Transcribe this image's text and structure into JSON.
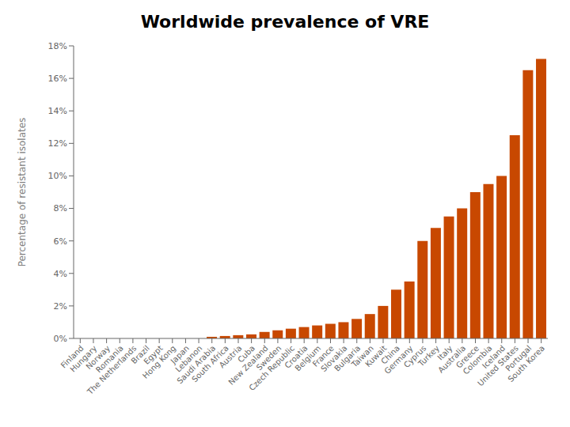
{
  "chart_data": {
    "type": "bar",
    "title": "Worldwide prevalence of VRE",
    "ylabel": "Percentage of resistant isolates",
    "categories": [
      "Finland",
      "Hungary",
      "Norway",
      "Romania",
      "The Netherlands",
      "Brazil",
      "Egypt",
      "Hong Kong",
      "Japan",
      "Lebanon",
      "Saudi Arabia",
      "South Africa",
      "Austria",
      "Cuba",
      "New Zealand",
      "Sweden",
      "Czech Republic",
      "Croatia",
      "Belgium",
      "France",
      "Slovakia",
      "Bulgaria",
      "Taiwan",
      "Kuwait",
      "China",
      "Germany",
      "Cyprus",
      "Turkey",
      "Italy",
      "Australia",
      "Greece",
      "Colombia",
      "Iceland",
      "United States",
      "Portugal",
      "South Korea"
    ],
    "values": [
      0.0,
      0.0,
      0.0,
      0.0,
      0.0,
      0.0,
      0.0,
      0.0,
      0.0,
      0.0,
      0.1,
      0.15,
      0.2,
      0.25,
      0.4,
      0.5,
      0.6,
      0.7,
      0.8,
      0.9,
      1.0,
      1.2,
      1.5,
      2.0,
      3.0,
      3.5,
      6.0,
      6.8,
      7.5,
      8.0,
      9.0,
      9.5,
      10.0,
      12.5,
      16.5,
      17.2
    ],
    "color": "#c84800",
    "ylim": [
      0,
      18
    ],
    "yticks": [
      {
        "value": 0,
        "label": "0%"
      },
      {
        "value": 2,
        "label": "2%"
      },
      {
        "value": 4,
        "label": "4%"
      },
      {
        "value": 6,
        "label": "6%"
      },
      {
        "value": 8,
        "label": "8%"
      },
      {
        "value": 10,
        "label": "10%"
      },
      {
        "value": 12,
        "label": "12%"
      },
      {
        "value": 14,
        "label": "14%"
      },
      {
        "value": 16,
        "label": "16%"
      },
      {
        "value": 18,
        "label": "18%"
      }
    ],
    "grid": false
  }
}
